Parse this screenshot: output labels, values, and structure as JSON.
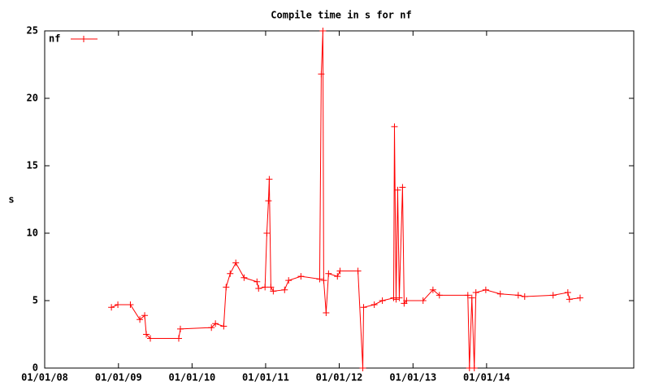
{
  "chart_data": {
    "type": "line",
    "title": "Compile time in s for nf",
    "y_label": "s",
    "x": [
      "2008-11-27",
      "2008-12-29",
      "2009-03-01",
      "2009-04-17",
      "2009-05-11",
      "2009-05-19",
      "2009-06-08",
      "2009-10-27",
      "2009-11-04",
      "2010-04-07",
      "2010-04-27",
      "2010-06-07",
      "2010-06-19",
      "2010-07-09",
      "2010-08-06",
      "2010-09-16",
      "2010-11-19",
      "2010-11-27",
      "2010-12-29",
      "2011-01-07",
      "2011-01-15",
      "2011-01-19",
      "2011-01-27",
      "2011-02-08",
      "2011-04-05",
      "2011-04-25",
      "2011-06-25",
      "2011-09-26",
      "2011-10-04",
      "2011-10-12",
      "2011-10-16",
      "2011-10-28",
      "2011-11-09",
      "2011-12-23",
      "2012-01-05",
      "2012-04-03",
      "2012-04-27",
      "2012-05-01",
      "2012-06-23",
      "2012-08-02",
      "2012-09-27",
      "2012-10-01",
      "2012-10-09",
      "2012-10-17",
      "2012-10-25",
      "2012-11-10",
      "2012-11-18",
      "2012-11-30",
      "2013-02-20",
      "2013-04-10",
      "2013-05-12",
      "2013-09-30",
      "2013-10-08",
      "2013-10-20",
      "2013-11-01",
      "2013-11-09",
      "2013-12-28",
      "2014-03-10",
      "2014-06-07",
      "2014-07-09",
      "2014-11-27",
      "2015-02-08",
      "2015-02-16",
      "2015-04-10"
    ],
    "series": [
      {
        "name": "nf",
        "color": "#ff0000",
        "values": [
          4.5,
          4.7,
          4.7,
          3.6,
          3.9,
          2.5,
          2.2,
          2.2,
          2.9,
          3.0,
          3.3,
          3.1,
          6.0,
          7.0,
          7.8,
          6.7,
          6.4,
          5.9,
          6.0,
          10.0,
          12.4,
          14.0,
          6.0,
          5.7,
          5.8,
          6.5,
          6.8,
          6.6,
          21.8,
          25,
          6.5,
          4.1,
          7.0,
          6.8,
          7.2,
          7.2,
          0,
          4.5,
          4.7,
          5.0,
          5.2,
          17.9,
          5.1,
          13.2,
          5.2,
          13.4,
          4.8,
          5.0,
          5.0,
          5.8,
          5.4,
          5.4,
          0,
          5.2,
          0,
          5.6,
          5.8,
          5.5,
          5.4,
          5.3,
          5.4,
          5.6,
          5.1,
          5.2
        ]
      }
    ],
    "xlim": [
      "2008-01-01",
      "2016-01-01"
    ],
    "xticks": [
      {
        "value": "2008-01-01",
        "label": "01/01/08"
      },
      {
        "value": "2009-01-01",
        "label": "01/01/09"
      },
      {
        "value": "2010-01-01",
        "label": "01/01/10"
      },
      {
        "value": "2011-01-01",
        "label": "01/01/11"
      },
      {
        "value": "2012-01-01",
        "label": "01/01/12"
      },
      {
        "value": "2013-01-01",
        "label": "01/01/13"
      },
      {
        "value": "2014-01-01",
        "label": "01/01/14"
      }
    ],
    "ylim": [
      0,
      25
    ],
    "yticks": [
      0,
      5,
      10,
      15,
      20,
      25
    ],
    "legend": "top-left",
    "grid": false
  }
}
